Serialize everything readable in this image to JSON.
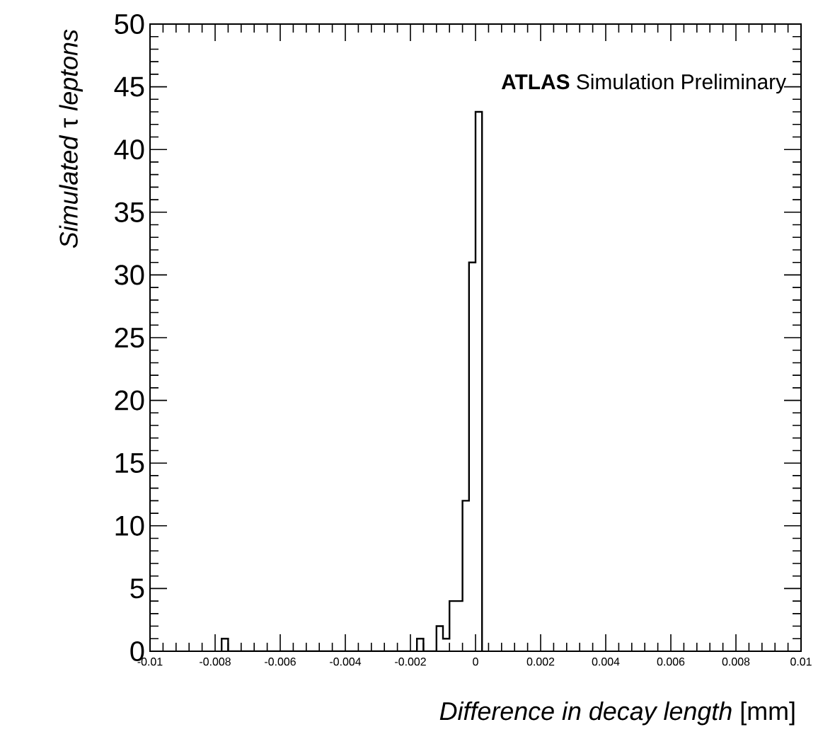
{
  "chart_data": {
    "type": "histogram",
    "bins": [
      -0.0078,
      -0.0076,
      -0.0074,
      -0.0072,
      -0.007,
      -0.0068,
      -0.0066,
      -0.0064,
      -0.0062,
      -0.006,
      -0.0058,
      -0.0056,
      -0.0054,
      -0.0052,
      -0.005,
      -0.0048,
      -0.0046,
      -0.0044,
      -0.0042,
      -0.004,
      -0.0038,
      -0.0036,
      -0.0034,
      -0.0032,
      -0.003,
      -0.0028,
      -0.0026,
      -0.0024,
      -0.0022,
      -0.002,
      -0.0018,
      -0.0016,
      -0.0014,
      -0.0012,
      -0.001,
      -0.0008,
      -0.0006,
      -0.0004,
      -0.0002,
      0,
      0.0002
    ],
    "values": [
      1,
      0,
      0,
      0,
      0,
      0,
      0,
      0,
      0,
      0,
      0,
      0,
      0,
      0,
      0,
      0,
      0,
      0,
      0,
      0,
      0,
      0,
      0,
      0,
      0,
      0,
      0,
      0,
      0,
      0,
      1,
      0,
      0,
      2,
      1,
      4,
      4,
      12,
      31,
      43
    ],
    "color": "#000000",
    "xlim": [
      -0.01,
      0.01
    ],
    "ylim": [
      0,
      50
    ],
    "xticks": [
      -0.01,
      -0.008,
      -0.006,
      -0.004,
      -0.002,
      0,
      0.002,
      0.004,
      0.006,
      0.008,
      0.01
    ],
    "yticks": [
      0,
      5,
      10,
      15,
      20,
      25,
      30,
      35,
      40,
      45,
      50
    ],
    "xlabel": "*Difference in decay length* [mm]",
    "ylabel": "*Simulated* τ *leptons*",
    "annotations": [
      "**ATLAS** Simulation Preliminary"
    ]
  }
}
